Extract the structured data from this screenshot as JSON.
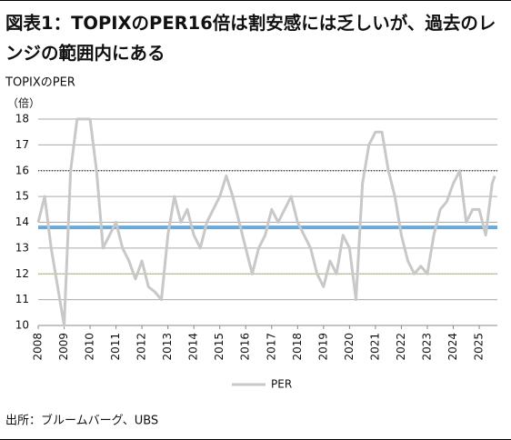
{
  "chart_data": {
    "type": "line",
    "title": "図表1：TOPIXのPER16倍は割安感には乏しいが、過去のレンジの範囲内にある",
    "subtitle": "TOPIXのPER",
    "y_unit": "（倍）",
    "source": "出所：ブルームバーグ、UBS",
    "x": [
      2008.0,
      2008.25,
      2008.5,
      2008.75,
      2009.0,
      2009.25,
      2009.5,
      2009.75,
      2010.0,
      2010.25,
      2010.5,
      2010.75,
      2011.0,
      2011.25,
      2011.5,
      2011.75,
      2012.0,
      2012.25,
      2012.5,
      2012.75,
      2013.0,
      2013.25,
      2013.5,
      2013.75,
      2014.0,
      2014.25,
      2014.5,
      2014.75,
      2015.0,
      2015.25,
      2015.5,
      2015.75,
      2016.0,
      2016.25,
      2016.5,
      2016.75,
      2017.0,
      2017.25,
      2017.5,
      2017.75,
      2018.0,
      2018.25,
      2018.5,
      2018.75,
      2019.0,
      2019.25,
      2019.5,
      2019.75,
      2020.0,
      2020.25,
      2020.5,
      2020.75,
      2021.0,
      2021.25,
      2021.5,
      2021.75,
      2022.0,
      2022.25,
      2022.5,
      2022.75,
      2023.0,
      2023.25,
      2023.5,
      2023.75,
      2024.0,
      2024.25,
      2024.5,
      2024.75,
      2025.0,
      2025.25,
      2025.5,
      2025.6
    ],
    "series": [
      {
        "name": "PER",
        "color": "#c8c8c8",
        "values": [
          14,
          15,
          13,
          11.5,
          10,
          16,
          18,
          18,
          18,
          16,
          13,
          13.5,
          14,
          13,
          12.5,
          11.8,
          12.5,
          11.5,
          11.3,
          11,
          13.5,
          15,
          14,
          14.5,
          13.5,
          13,
          14,
          14.5,
          15,
          15.8,
          15,
          14,
          13,
          12,
          13,
          13.5,
          14.5,
          14,
          14.5,
          15,
          14,
          13.5,
          13,
          12,
          11.5,
          12.5,
          12,
          13.5,
          13,
          11,
          15.5,
          17,
          17.5,
          17.5,
          16,
          15,
          13.5,
          12.5,
          12,
          12.3,
          12,
          13.5,
          14.5,
          14.8,
          15.5,
          16,
          14,
          14.5,
          14.5,
          13.5,
          15.5,
          15.8
        ]
      }
    ],
    "reference_lines": [
      {
        "value": 16,
        "color": "#333333",
        "dash": "1 2"
      },
      {
        "value": 13.8,
        "color": "#6aaad8",
        "width": 4
      },
      {
        "value": 12,
        "color": "#9acd32",
        "dash": "1 2"
      }
    ],
    "xlim": [
      2008,
      2025.7
    ],
    "xticks": [
      2008,
      2009,
      2010,
      2011,
      2012,
      2013,
      2014,
      2015,
      2016,
      2017,
      2018,
      2019,
      2020,
      2021,
      2022,
      2023,
      2024,
      2025
    ],
    "ylim": [
      10,
      18
    ],
    "yticks": [
      10,
      11,
      12,
      13,
      14,
      15,
      16,
      17,
      18
    ],
    "grid": true
  }
}
